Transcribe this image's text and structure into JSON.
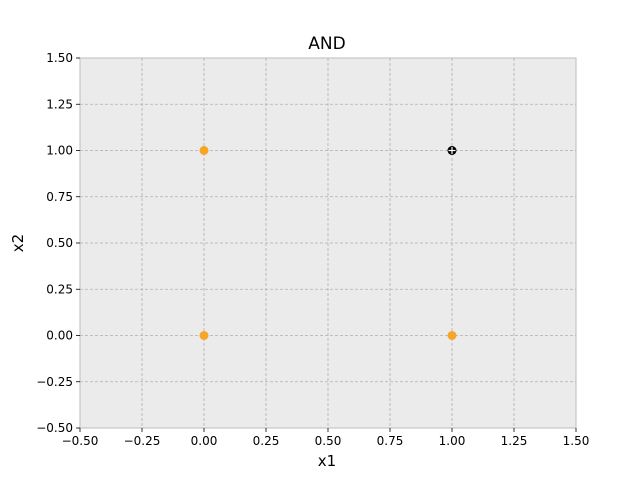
{
  "chart_data": {
    "type": "scatter",
    "title": "AND",
    "xlabel": "x1",
    "ylabel": "x2",
    "xlim": [
      -0.5,
      1.5
    ],
    "ylim": [
      -0.5,
      1.5
    ],
    "grid": true,
    "background": "#ebebeb",
    "xticks": [
      "−0.50",
      "−0.25",
      "0.00",
      "0.25",
      "0.50",
      "0.75",
      "1.00",
      "1.25",
      "1.50"
    ],
    "yticks": [
      "−0.50",
      "−0.25",
      "0.00",
      "0.25",
      "0.50",
      "0.75",
      "1.00",
      "1.25",
      "1.50"
    ],
    "series": [
      {
        "color": "#f5a623",
        "marker": "circle",
        "points": [
          [
            0,
            0
          ],
          [
            0,
            1
          ],
          [
            1,
            0
          ]
        ]
      },
      {
        "color": "#000000",
        "marker": "circle-plus",
        "points": [
          [
            1,
            1
          ]
        ]
      }
    ]
  }
}
